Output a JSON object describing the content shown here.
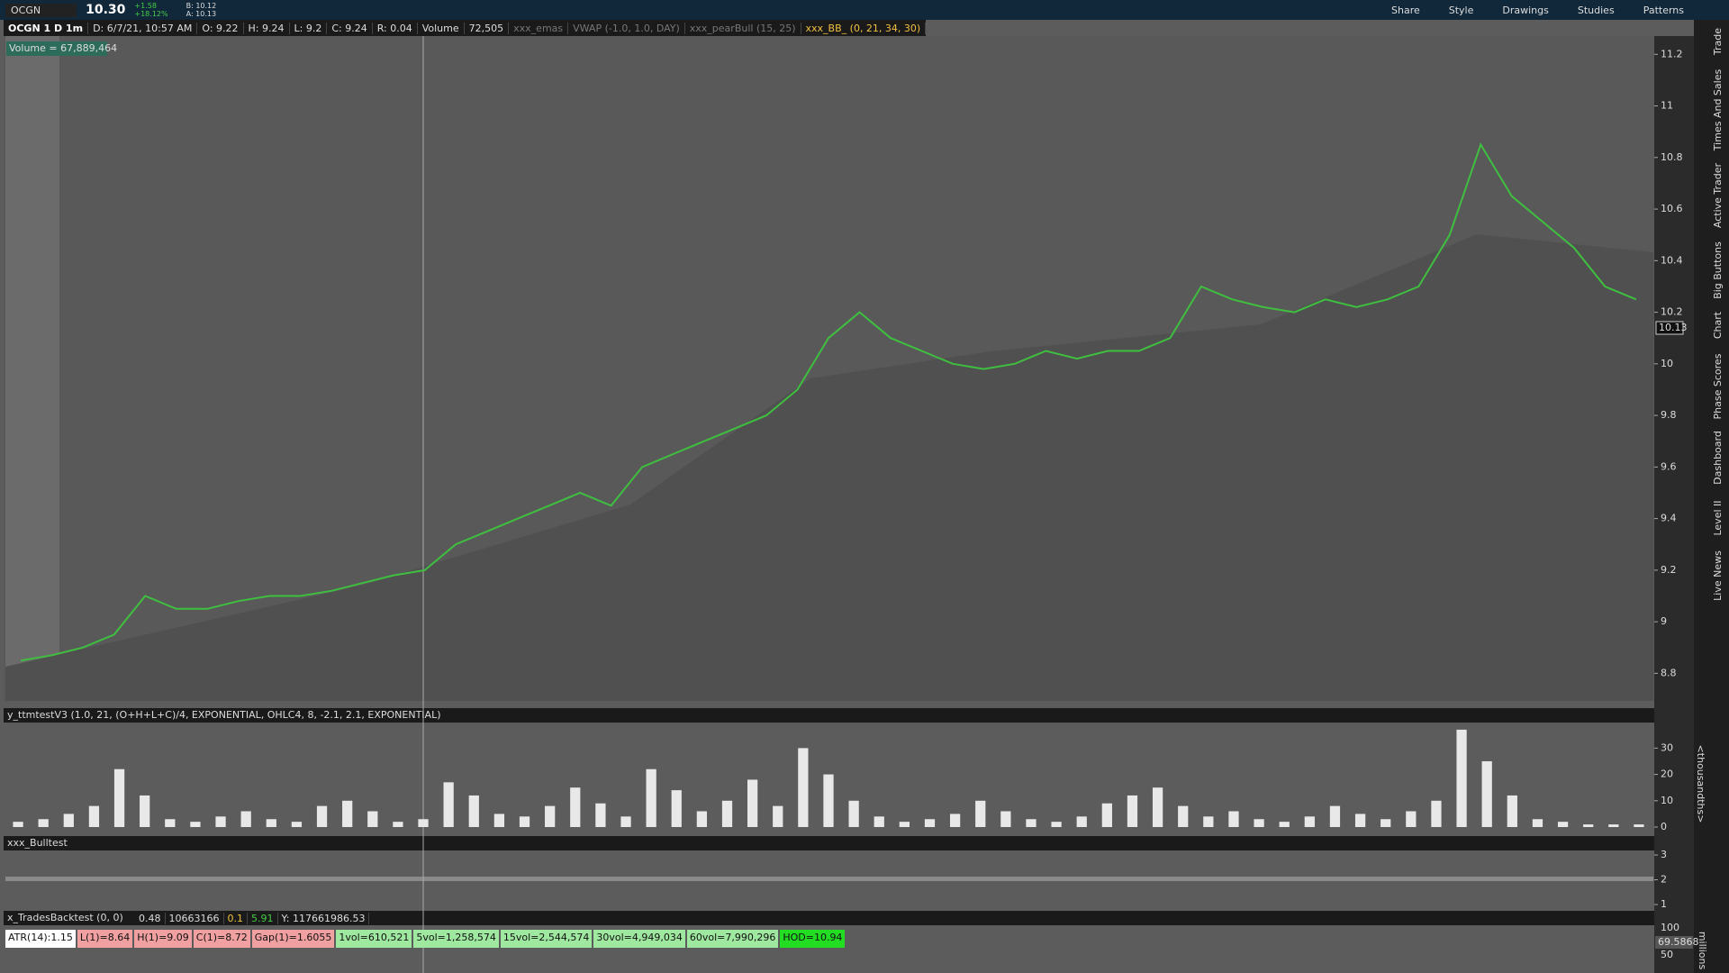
{
  "toolbar": {
    "symbol": "OCGN",
    "last": "10.30",
    "change": "+1.58",
    "change_pct": "+18.12%",
    "bid": "B: 10.12",
    "ask": "A: 10.13",
    "buttons": [
      "Share",
      "Style",
      "Drawings",
      "Studies",
      "Patterns"
    ]
  },
  "header": {
    "title": "OCGN 1 D 1m",
    "items": [
      "D: 6/7/21, 10:57 AM",
      "O: 9.22",
      "H: 9.24",
      "L: 9.2",
      "C: 9.24",
      "R: 0.04",
      "Volume",
      "72,505",
      "xxx_emas",
      "VWAP (-1.0, 1.0, DAY)",
      "xxx_pearBull (15, 25)",
      "xxx_BB_ (0, 21, 34, 30)"
    ]
  },
  "volume_label": "Volume = 67,889,464",
  "side_tabs": [
    "Trade",
    "Times And Sales",
    "Active Trader",
    "Big Buttons",
    "Chart",
    "Phase Scores",
    "Dashboard",
    "Level II",
    "Live News"
  ],
  "price_chart": {
    "type": "line",
    "color": "#3fbf3f",
    "values": [
      8.85,
      8.87,
      8.9,
      8.95,
      9.1,
      9.05,
      9.05,
      9.08,
      9.1,
      9.1,
      9.12,
      9.15,
      9.18,
      9.2,
      9.3,
      9.35,
      9.4,
      9.45,
      9.5,
      9.45,
      9.6,
      9.65,
      9.7,
      9.75,
      9.8,
      9.9,
      10.1,
      10.2,
      10.1,
      10.05,
      10.0,
      9.98,
      10.0,
      10.05,
      10.02,
      10.05,
      10.05,
      10.1,
      10.3,
      10.25,
      10.22,
      10.2,
      10.25,
      10.22,
      10.25,
      10.3,
      10.5,
      10.85,
      10.65,
      10.55,
      10.45,
      10.3,
      10.25
    ],
    "ylim": [
      8.7,
      11.25
    ],
    "yticks": [
      8.8,
      9,
      9.2,
      9.4,
      9.6,
      9.8,
      10,
      10.2,
      10.4,
      10.6,
      10.8,
      11,
      11.2
    ],
    "current": "10.13"
  },
  "study_1": {
    "type": "bar",
    "label": "y_ttmtestV3 (1.0, 21, (O+H+L+C)/4, EXPONENTIAL, OHLC4, 8, -2.1, 2.1, EXPONENTIAL)",
    "axis_label": "<thousandths>",
    "color": "#e8e8e8",
    "values": [
      2,
      3,
      5,
      8,
      22,
      12,
      3,
      2,
      4,
      6,
      3,
      2,
      8,
      10,
      6,
      2,
      3,
      17,
      12,
      5,
      4,
      8,
      15,
      9,
      4,
      22,
      14,
      6,
      10,
      18,
      8,
      30,
      20,
      10,
      4,
      2,
      3,
      5,
      10,
      6,
      3,
      2,
      4,
      9,
      12,
      15,
      8,
      4,
      6,
      3,
      2,
      4,
      8,
      5,
      3,
      6,
      10,
      37,
      25,
      12,
      3,
      2,
      1,
      1,
      1
    ],
    "ylim": [
      0,
      38
    ],
    "yticks": [
      0,
      10,
      20,
      30
    ]
  },
  "study_2": {
    "label": "xxx_Bulltest",
    "yticks": [
      1,
      2,
      3
    ],
    "ylim": [
      1,
      3
    ]
  },
  "study_3": {
    "label": "x_TradesBacktest (0, 0)",
    "items": [
      "0.48",
      "10663166",
      "0.1",
      "5.91",
      "Y: 117661986.53"
    ],
    "badges": [
      "ATR(14):1.15",
      "L(1)=8.64",
      "H(1)=9.09",
      "C(1)=8.72",
      "Gap(1)=1.6055",
      "1vol=610,521",
      "5vol=1,258,574",
      "15vol=2,544,574",
      "30vol=4,949,034",
      "60vol=7,990,296",
      "HOD=10.94"
    ],
    "axis_ticks": [
      "100",
      "50"
    ],
    "axis_value": "69.5868",
    "axis_label": "millions"
  }
}
